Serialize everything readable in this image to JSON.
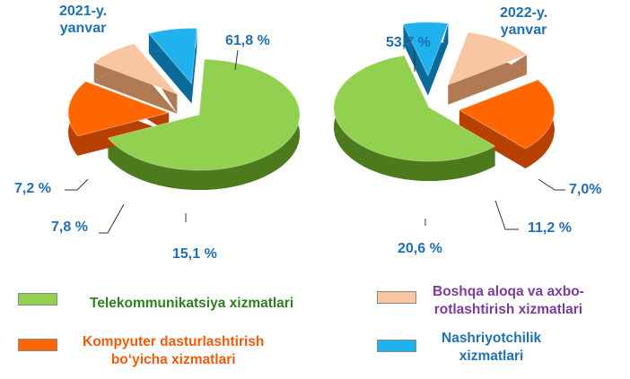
{
  "chart_data": [
    {
      "type": "pie",
      "title": "2021-y. yanvar",
      "slices": [
        {
          "label": "Telekommunikatsiya xizmatlari",
          "value": 61.8,
          "value_text": "61,8 %"
        },
        {
          "label": "Kompyuter dasturlashtirish bo‘yicha xizmatlari",
          "value": 15.1,
          "value_text": "15,1 %"
        },
        {
          "label": "Boshqa aloqa va axborotlashtirish xizmatlari",
          "value": 7.8,
          "value_text": "7,8 %"
        },
        {
          "label": "Nashriyotchilik xizmatlari",
          "value": 7.2,
          "value_text": "7,2 %"
        }
      ]
    },
    {
      "type": "pie",
      "title": "2022-y. yanvar",
      "slices": [
        {
          "label": "Telekommunikatsiya xizmatlari",
          "value": 53.7,
          "value_text": "53,7 %"
        },
        {
          "label": "Kompyuter dasturlashtirish bo‘yicha xizmatlari",
          "value": 20.6,
          "value_text": "20,6 %"
        },
        {
          "label": "Boshqa aloqa va axborotlashtirish xizmatlari",
          "value": 11.2,
          "value_text": "11,2  %"
        },
        {
          "label": "Nashriyotchilik xizmatlari",
          "value": 7.0,
          "value_text": "7,0%"
        }
      ]
    }
  ],
  "charts_text": {
    "left_year": "2021-y.",
    "left_month": "yanvar",
    "right_year": "2022-y.",
    "right_month": "yanvar"
  },
  "legend": [
    {
      "key": "telecom",
      "text": "Telekommunikatsiya xizmatlari",
      "color": "#92d050",
      "text_color": "#2e7d1f"
    },
    {
      "key": "software",
      "text_line1": "Kompyuter dasturlashtirish",
      "text_line2": "bo‘yicha xizmatlari",
      "color": "#ff6600",
      "text_color": "#f05a0a"
    },
    {
      "key": "other",
      "text_line1": "Boshqa aloqa va axbo-",
      "text_line2": "rotlashtirish xizmatlari",
      "color": "#f8c6a0",
      "text_color": "#7a3c9a"
    },
    {
      "key": "publishing",
      "text_line1": "Nashriyotchilik",
      "text_line2": "xizmatlari",
      "color": "#1fb2ef",
      "text_color": "#1f6fb5"
    }
  ],
  "colors": {
    "telecom_top": "#92d050",
    "telecom_side": "#4e7a1e",
    "software_top": "#ff6600",
    "software_side": "#b84000",
    "other_top": "#f8c6a0",
    "other_side": "#b07a55",
    "publishing_top": "#1fb2ef",
    "publishing_side": "#0a6a99"
  }
}
